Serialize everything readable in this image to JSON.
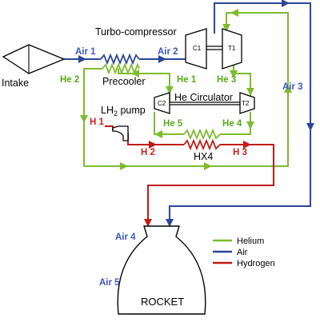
{
  "colors": {
    "helium": "#7dbb2d",
    "air": "#2b4598",
    "hydrogen": "#c21b17",
    "blue_label": "#3b56c4",
    "green_label": "#5aa91c",
    "red_label": "#d21d1b"
  },
  "components": {
    "intake": "Intake",
    "turbo_compressor": "Turbo-compressor",
    "compressor": "C1",
    "turbine": "T1",
    "precooler": "Precooler",
    "he_circulator": "He Circulator",
    "circ_compressor": "C2",
    "circ_turbine": "T2",
    "lh2_pump_base": "LH",
    "lh2_pump_sub": "2",
    "lh2_pump_rest": " pump",
    "hx4": "HX4",
    "rocket": "ROCKET"
  },
  "streams": {
    "air1": "Air 1",
    "air2": "Air 2",
    "air3": "Air 3",
    "air4": "Air 4",
    "air5": "Air 5",
    "he1": "He 1",
    "he2": "He 2",
    "he3": "He 3",
    "he4": "He 4",
    "he5": "He 5",
    "h1": "H 1",
    "h2": "H 2",
    "h3": "H 3"
  },
  "legend": [
    {
      "label": "Helium",
      "color": "#7dbb2d"
    },
    {
      "label": "Air",
      "color": "#2b4598"
    },
    {
      "label": "Hydrogen",
      "color": "#c21b17"
    }
  ]
}
